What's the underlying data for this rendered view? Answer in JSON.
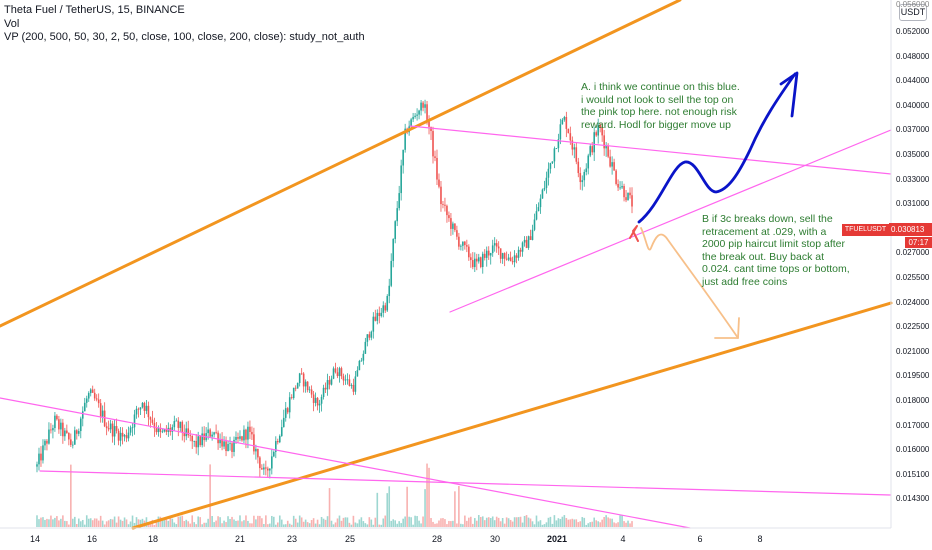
{
  "header": {
    "title": "Theta Fuel / TetherUS, 15, BINANCE",
    "vol": "Vol",
    "study": "VP (200, 500, 50, 30, 2, 50, close, 100, close, 200, close): study_not_auth"
  },
  "currency_label": "USDT",
  "price_tag": {
    "symbol": "TFUELUSDT",
    "price": "0.030813",
    "timer": "07:17"
  },
  "annotations": {
    "note_a": "A. i think we continue on this blue. i would not look to sell the top on the pink top here. not enough risk reward. Hodl for bigger move up",
    "note_b": "B if 3c breaks down, sell the retracement at .029, with a 2000 pip haircut limit stop after the break out. Buy back at 0.024. cant time tops or bottom, just add free coins"
  },
  "colors": {
    "up": "#26a69a",
    "down": "#ef5350",
    "orange_channel": "#f2951f",
    "pink_lines": "#ff66ee",
    "blue_projection": "#0a14c8",
    "peach_projection": "#f7c08a",
    "note_text": "#2e7d32",
    "price_tag": "#e53935"
  },
  "chart_data": {
    "type": "candlestick",
    "symbol": "TFUELUSDT",
    "timeframe": "15",
    "exchange": "BINANCE",
    "y_axis": {
      "ticks": [
        "0.052000",
        "0.048000",
        "0.044000",
        "0.040000",
        "0.037000",
        "0.035000",
        "0.033000",
        "0.031000",
        "0.029000",
        "0.027000",
        "0.025500",
        "0.024000",
        "0.022500",
        "0.021000",
        "0.019500",
        "0.018000",
        "0.017000",
        "0.016000",
        "0.015100",
        "0.014300"
      ],
      "top_partial": "0.056000"
    },
    "x_axis": {
      "ticks": [
        {
          "label": "14",
          "bold": false
        },
        {
          "label": "16",
          "bold": false
        },
        {
          "label": "18",
          "bold": false
        },
        {
          "label": "21",
          "bold": false
        },
        {
          "label": "23",
          "bold": false
        },
        {
          "label": "25",
          "bold": false
        },
        {
          "label": "28",
          "bold": false
        },
        {
          "label": "30",
          "bold": false
        },
        {
          "label": "2021",
          "bold": true
        },
        {
          "label": "4",
          "bold": false
        },
        {
          "label": "6",
          "bold": false
        },
        {
          "label": "8",
          "bold": false
        }
      ]
    },
    "last_price": 0.030813,
    "price_path": [
      [
        0.0154,
        0.0172
      ],
      [
        0.0172,
        0.0162
      ],
      [
        0.0162,
        0.0185
      ],
      [
        0.0185,
        0.017
      ],
      [
        0.017,
        0.0165
      ],
      [
        0.0165,
        0.018
      ],
      [
        0.018,
        0.0166
      ],
      [
        0.0166,
        0.017
      ],
      [
        0.017,
        0.0162
      ],
      [
        0.0162,
        0.0168
      ],
      [
        0.0168,
        0.016
      ],
      [
        0.016,
        0.0168
      ],
      [
        0.0168,
        0.015
      ],
      [
        0.015,
        0.0172
      ],
      [
        0.0172,
        0.0195
      ],
      [
        0.0195,
        0.0178
      ],
      [
        0.0178,
        0.02
      ],
      [
        0.02,
        0.0188
      ],
      [
        0.0188,
        0.0225
      ],
      [
        0.0225,
        0.0242
      ],
      [
        0.0242,
        0.037
      ],
      [
        0.037,
        0.0405
      ],
      [
        0.0405,
        0.0312
      ],
      [
        0.0312,
        0.028
      ],
      [
        0.028,
        0.0262
      ],
      [
        0.0262,
        0.0275
      ],
      [
        0.0275,
        0.0266
      ],
      [
        0.0266,
        0.028
      ],
      [
        0.028,
        0.033
      ],
      [
        0.033,
        0.0385
      ],
      [
        0.0385,
        0.033
      ],
      [
        0.033,
        0.0375
      ],
      [
        0.0375,
        0.033
      ],
      [
        0.033,
        0.0308
      ]
    ],
    "drawings": [
      {
        "kind": "trendline",
        "name": "orange upper channel",
        "color": "orange"
      },
      {
        "kind": "trendline",
        "name": "orange lower channel",
        "color": "orange"
      },
      {
        "kind": "trendline",
        "name": "pink descending resistance",
        "color": "pink"
      },
      {
        "kind": "trendline",
        "name": "pink rising support",
        "color": "pink"
      },
      {
        "kind": "trendline",
        "name": "pink early downtrend",
        "color": "pink"
      },
      {
        "kind": "trendline",
        "name": "pink horizontal support",
        "color": "pink"
      },
      {
        "kind": "arrow",
        "name": "blue bullish projection",
        "color": "blue"
      },
      {
        "kind": "arrow",
        "name": "peach bearish projection",
        "color": "peach"
      }
    ]
  }
}
